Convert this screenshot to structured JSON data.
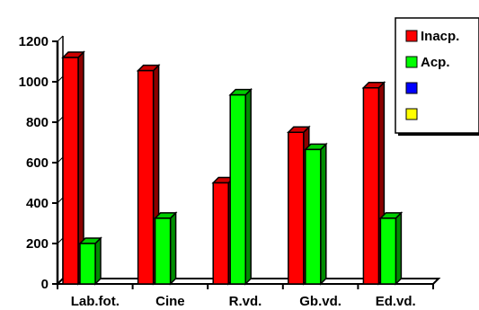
{
  "chart_data": {
    "type": "bar",
    "categories": [
      "Lab.fot.",
      "Cine",
      "R.vd.",
      "Gb.vd.",
      "Ed.vd."
    ],
    "series": [
      {
        "name": "Inacp.",
        "color": "#ff0000",
        "values": [
          1120,
          1055,
          500,
          750,
          970
        ]
      },
      {
        "name": "Acp.",
        "color": "#00ff00",
        "values": [
          200,
          325,
          935,
          665,
          325
        ]
      },
      {
        "name": "",
        "color": "#0000ff",
        "values": [
          0,
          0,
          0,
          0,
          0
        ]
      },
      {
        "name": "",
        "color": "#ffff00",
        "values": [
          0,
          0,
          0,
          0,
          0
        ]
      }
    ],
    "ylim": [
      0,
      1200
    ],
    "yticks": [
      0,
      200,
      400,
      600,
      800,
      1000,
      1200
    ],
    "ytick_labels": [
      "0",
      "200",
      "400",
      "600",
      "800",
      "1000",
      "1200"
    ],
    "legend_position": "top-right",
    "grid": false,
    "style": "3d-bar"
  }
}
